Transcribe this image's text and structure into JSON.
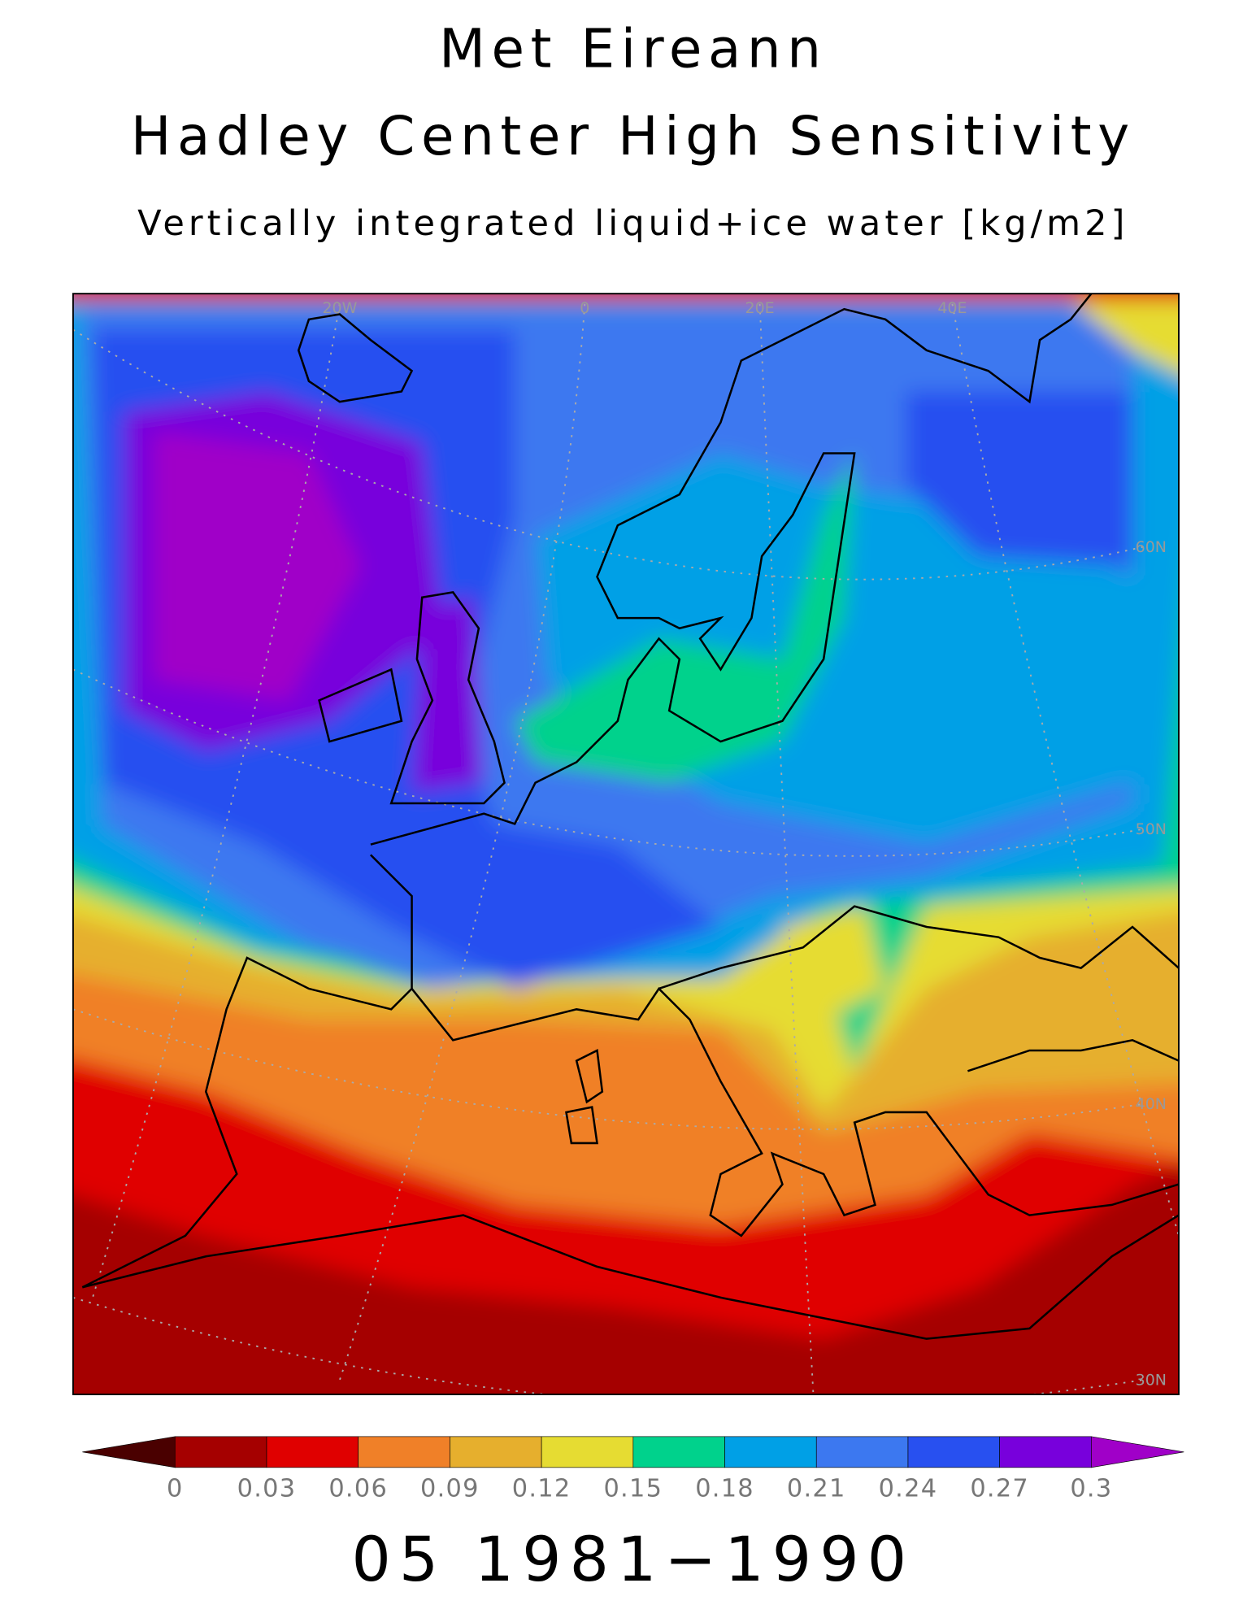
{
  "header": {
    "title": "Met Eireann",
    "subtitle": "Hadley Center High Sensitivity",
    "variable": "Vertically integrated liquid+ice water [kg/m2]"
  },
  "map": {
    "lon_labels": [
      "20W",
      "0",
      "20E",
      "40E"
    ],
    "lat_labels": [
      "60N",
      "50N",
      "40N",
      "30N"
    ]
  },
  "colorbar": {
    "levels": [
      0,
      0.03,
      0.06,
      0.09,
      0.12,
      0.15,
      0.18,
      0.21,
      0.24,
      0.27,
      0.3
    ],
    "colors": [
      "#4a0000",
      "#a50000",
      "#e00000",
      "#f08028",
      "#e6af2d",
      "#e6dc32",
      "#00d28c",
      "#00a0e6",
      "#3c78f0",
      "#2850f0",
      "#7800dc",
      "#a000c8"
    ]
  },
  "footer": {
    "period": "05 1981−1990"
  }
}
